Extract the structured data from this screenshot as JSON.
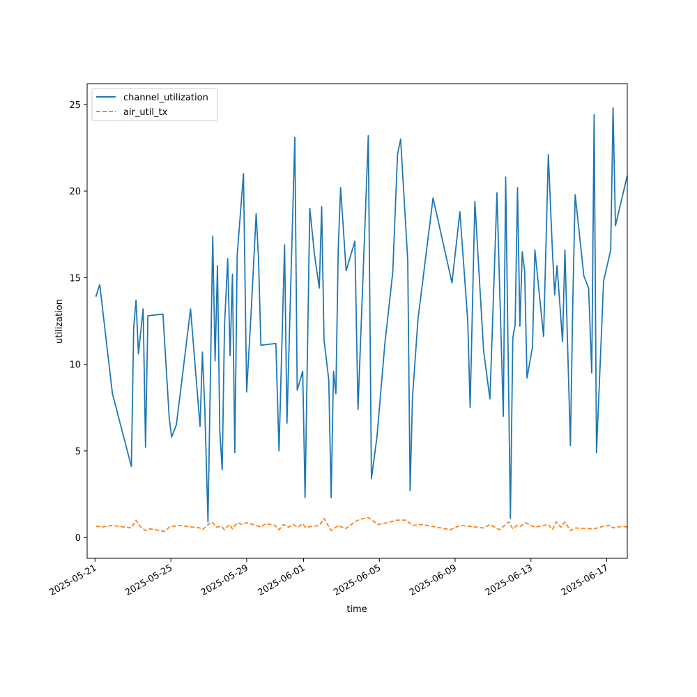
{
  "chart_data": {
    "type": "line",
    "xlabel": "time",
    "ylabel": "utilization",
    "x_axis_type": "date",
    "xlim": [
      "2025-05-20T14:00",
      "2025-06-18T02:00"
    ],
    "ylim": [
      -1.2,
      26.2
    ],
    "x_ticks": [
      "2025-05-21",
      "2025-05-25",
      "2025-05-29",
      "2025-06-01",
      "2025-06-05",
      "2025-06-09",
      "2025-06-13",
      "2025-06-17"
    ],
    "y_ticks": [
      0,
      5,
      10,
      15,
      20,
      25
    ],
    "grid": false,
    "legend": "upper left",
    "series": [
      {
        "name": "channel_utilization",
        "color": "#1f77b4",
        "style": "solid",
        "points": [
          [
            "2025-05-21T01:00",
            13.9
          ],
          [
            "2025-05-21T06:00",
            14.6
          ],
          [
            "2025-05-21T22:00",
            8.3
          ],
          [
            "2025-05-22T22:00",
            4.1
          ],
          [
            "2025-05-23T01:00",
            12.1
          ],
          [
            "2025-05-23T04:00",
            13.7
          ],
          [
            "2025-05-23T07:00",
            10.6
          ],
          [
            "2025-05-23T13:00",
            13.2
          ],
          [
            "2025-05-23T16:00",
            5.2
          ],
          [
            "2025-05-23T19:00",
            12.8
          ],
          [
            "2025-05-24T14:00",
            12.9
          ],
          [
            "2025-05-24T22:00",
            6.9
          ],
          [
            "2025-05-25T01:00",
            5.8
          ],
          [
            "2025-05-25T07:00",
            6.5
          ],
          [
            "2025-05-25T13:00",
            8.7
          ],
          [
            "2025-05-26T01:00",
            13.2
          ],
          [
            "2025-05-26T13:00",
            6.4
          ],
          [
            "2025-05-26T16:00",
            10.7
          ],
          [
            "2025-05-26T19:00",
            7.5
          ],
          [
            "2025-05-26T23:00",
            0.9
          ],
          [
            "2025-05-27T05:00",
            17.4
          ],
          [
            "2025-05-27T08:00",
            10.2
          ],
          [
            "2025-05-27T11:00",
            15.7
          ],
          [
            "2025-05-27T14:00",
            6.1
          ],
          [
            "2025-05-27T17:00",
            3.9
          ],
          [
            "2025-05-27T20:00",
            12.2
          ],
          [
            "2025-05-28T00:00",
            16.1
          ],
          [
            "2025-05-28T03:00",
            10.5
          ],
          [
            "2025-05-28T06:00",
            15.2
          ],
          [
            "2025-05-28T09:00",
            4.9
          ],
          [
            "2025-05-28T12:00",
            16.3
          ],
          [
            "2025-05-28T20:00",
            21.0
          ],
          [
            "2025-05-29T00:00",
            8.4
          ],
          [
            "2025-05-29T06:00",
            13.3
          ],
          [
            "2025-05-29T12:00",
            18.7
          ],
          [
            "2025-05-29T15:00",
            16.1
          ],
          [
            "2025-05-29T18:00",
            11.1
          ],
          [
            "2025-05-30T13:00",
            11.2
          ],
          [
            "2025-05-30T17:00",
            5.0
          ],
          [
            "2025-05-31T00:00",
            16.9
          ],
          [
            "2025-05-31T03:00",
            6.6
          ],
          [
            "2025-05-31T13:00",
            23.1
          ],
          [
            "2025-05-31T16:00",
            8.5
          ],
          [
            "2025-05-31T23:00",
            9.6
          ],
          [
            "2025-06-01T02:00",
            2.3
          ],
          [
            "2025-06-01T08:00",
            19.0
          ],
          [
            "2025-06-01T14:00",
            16.3
          ],
          [
            "2025-06-01T20:00",
            14.4
          ],
          [
            "2025-06-01T23:00",
            19.1
          ],
          [
            "2025-06-02T02:00",
            11.4
          ],
          [
            "2025-06-02T08:00",
            9.1
          ],
          [
            "2025-06-02T11:00",
            2.3
          ],
          [
            "2025-06-02T14:00",
            9.6
          ],
          [
            "2025-06-02T17:00",
            8.3
          ],
          [
            "2025-06-02T20:00",
            16.7
          ],
          [
            "2025-06-02T23:00",
            20.2
          ],
          [
            "2025-06-03T06:00",
            15.4
          ],
          [
            "2025-06-03T17:00",
            17.1
          ],
          [
            "2025-06-03T21:00",
            7.4
          ],
          [
            "2025-06-04T07:00",
            19.5
          ],
          [
            "2025-06-04T10:00",
            23.2
          ],
          [
            "2025-06-04T14:00",
            3.4
          ],
          [
            "2025-06-04T21:00",
            5.8
          ],
          [
            "2025-06-05T07:00",
            11.2
          ],
          [
            "2025-06-05T17:00",
            15.3
          ],
          [
            "2025-06-05T23:00",
            22.1
          ],
          [
            "2025-06-06T03:00",
            23.0
          ],
          [
            "2025-06-06T12:00",
            16.0
          ],
          [
            "2025-06-06T15:00",
            2.7
          ],
          [
            "2025-06-06T18:00",
            8.1
          ],
          [
            "2025-06-07T01:00",
            12.6
          ],
          [
            "2025-06-07T20:00",
            19.6
          ],
          [
            "2025-06-08T20:00",
            14.7
          ],
          [
            "2025-06-09T06:00",
            18.8
          ],
          [
            "2025-06-09T16:00",
            12.5
          ],
          [
            "2025-06-09T19:00",
            7.5
          ],
          [
            "2025-06-10T01:00",
            19.4
          ],
          [
            "2025-06-10T12:00",
            10.8
          ],
          [
            "2025-06-10T20:00",
            8.0
          ],
          [
            "2025-06-11T02:00",
            15.8
          ],
          [
            "2025-06-11T05:00",
            19.9
          ],
          [
            "2025-06-11T13:00",
            7.0
          ],
          [
            "2025-06-11T16:00",
            20.8
          ],
          [
            "2025-06-11T22:00",
            1.1
          ],
          [
            "2025-06-12T01:00",
            11.5
          ],
          [
            "2025-06-12T04:00",
            12.3
          ],
          [
            "2025-06-12T07:00",
            20.2
          ],
          [
            "2025-06-12T10:00",
            12.2
          ],
          [
            "2025-06-12T13:00",
            16.5
          ],
          [
            "2025-06-12T16:00",
            15.4
          ],
          [
            "2025-06-12T19:00",
            9.2
          ],
          [
            "2025-06-13T02:00",
            11.0
          ],
          [
            "2025-06-13T05:00",
            16.6
          ],
          [
            "2025-06-13T16:00",
            11.6
          ],
          [
            "2025-06-13T22:00",
            22.1
          ],
          [
            "2025-06-14T03:00",
            16.7
          ],
          [
            "2025-06-14T06:00",
            14.0
          ],
          [
            "2025-06-14T09:00",
            15.7
          ],
          [
            "2025-06-14T16:00",
            11.3
          ],
          [
            "2025-06-14T19:00",
            16.6
          ],
          [
            "2025-06-15T02:00",
            5.3
          ],
          [
            "2025-06-15T05:00",
            13.6
          ],
          [
            "2025-06-15T08:00",
            19.8
          ],
          [
            "2025-06-15T19:00",
            15.1
          ],
          [
            "2025-06-16T01:00",
            14.4
          ],
          [
            "2025-06-16T05:00",
            9.5
          ],
          [
            "2025-06-16T08:00",
            24.4
          ],
          [
            "2025-06-16T11:00",
            4.9
          ],
          [
            "2025-06-16T20:00",
            14.8
          ],
          [
            "2025-06-17T05:00",
            16.6
          ],
          [
            "2025-06-17T08:00",
            24.8
          ],
          [
            "2025-06-17T11:00",
            18.0
          ],
          [
            "2025-06-18T02:00",
            20.9
          ]
        ]
      },
      {
        "name": "air_util_tx",
        "color": "#ff7f0e",
        "style": "dashed",
        "points": [
          [
            "2025-05-21T01:00",
            0.65
          ],
          [
            "2025-05-21T10:00",
            0.62
          ],
          [
            "2025-05-21T22:00",
            0.7
          ],
          [
            "2025-05-22T22:00",
            0.55
          ],
          [
            "2025-05-23T04:00",
            1.0
          ],
          [
            "2025-05-23T10:00",
            0.6
          ],
          [
            "2025-05-23T16:00",
            0.4
          ],
          [
            "2025-05-23T22:00",
            0.5
          ],
          [
            "2025-05-24T10:00",
            0.4
          ],
          [
            "2025-05-24T16:00",
            0.35
          ],
          [
            "2025-05-24T22:00",
            0.6
          ],
          [
            "2025-05-25T10:00",
            0.7
          ],
          [
            "2025-05-26T04:00",
            0.6
          ],
          [
            "2025-05-26T13:00",
            0.55
          ],
          [
            "2025-05-26T16:00",
            0.45
          ],
          [
            "2025-05-26T22:00",
            0.7
          ],
          [
            "2025-05-27T04:00",
            0.9
          ],
          [
            "2025-05-27T10:00",
            0.6
          ],
          [
            "2025-05-27T16:00",
            0.65
          ],
          [
            "2025-05-27T20:00",
            0.45
          ],
          [
            "2025-05-28T02:00",
            0.75
          ],
          [
            "2025-05-28T06:00",
            0.5
          ],
          [
            "2025-05-28T12:00",
            0.85
          ],
          [
            "2025-05-28T18:00",
            0.75
          ],
          [
            "2025-05-29T00:00",
            0.85
          ],
          [
            "2025-05-29T12:00",
            0.7
          ],
          [
            "2025-05-29T18:00",
            0.6
          ],
          [
            "2025-05-30T00:00",
            0.8
          ],
          [
            "2025-05-30T12:00",
            0.7
          ],
          [
            "2025-05-30T17:00",
            0.45
          ],
          [
            "2025-05-30T23:00",
            0.75
          ],
          [
            "2025-05-31T05:00",
            0.6
          ],
          [
            "2025-05-31T11:00",
            0.75
          ],
          [
            "2025-05-31T17:00",
            0.6
          ],
          [
            "2025-05-31T23:00",
            0.8
          ],
          [
            "2025-06-01T02:00",
            0.6
          ],
          [
            "2025-06-01T14:00",
            0.65
          ],
          [
            "2025-06-01T20:00",
            0.7
          ],
          [
            "2025-06-02T02:00",
            1.1
          ],
          [
            "2025-06-02T11:00",
            0.4
          ],
          [
            "2025-06-02T20:00",
            0.7
          ],
          [
            "2025-06-03T05:00",
            0.5
          ],
          [
            "2025-06-03T17:00",
            0.9
          ],
          [
            "2025-06-03T23:00",
            1.05
          ],
          [
            "2025-06-04T10:00",
            1.15
          ],
          [
            "2025-06-04T22:00",
            0.75
          ],
          [
            "2025-06-05T10:00",
            0.85
          ],
          [
            "2025-06-05T22:00",
            1.0
          ],
          [
            "2025-06-06T10:00",
            1.0
          ],
          [
            "2025-06-06T18:00",
            0.7
          ],
          [
            "2025-06-07T06:00",
            0.75
          ],
          [
            "2025-06-08T18:00",
            0.45
          ],
          [
            "2025-06-09T06:00",
            0.7
          ],
          [
            "2025-06-09T18:00",
            0.65
          ],
          [
            "2025-06-10T12:00",
            0.55
          ],
          [
            "2025-06-10T20:00",
            0.75
          ],
          [
            "2025-06-11T08:00",
            0.45
          ],
          [
            "2025-06-11T20:00",
            0.9
          ],
          [
            "2025-06-12T01:00",
            0.5
          ],
          [
            "2025-06-12T06:00",
            0.7
          ],
          [
            "2025-06-12T11:00",
            0.65
          ],
          [
            "2025-06-12T17:00",
            0.85
          ],
          [
            "2025-06-13T05:00",
            0.6
          ],
          [
            "2025-06-13T17:00",
            0.7
          ],
          [
            "2025-06-13T22:00",
            0.75
          ],
          [
            "2025-06-14T03:00",
            0.45
          ],
          [
            "2025-06-14T08:00",
            0.9
          ],
          [
            "2025-06-14T14:00",
            0.6
          ],
          [
            "2025-06-14T19:00",
            0.9
          ],
          [
            "2025-06-15T02:00",
            0.4
          ],
          [
            "2025-06-15T08:00",
            0.55
          ],
          [
            "2025-06-16T08:00",
            0.5
          ],
          [
            "2025-06-16T20:00",
            0.65
          ],
          [
            "2025-06-17T05:00",
            0.7
          ],
          [
            "2025-06-17T08:00",
            0.55
          ],
          [
            "2025-06-17T20:00",
            0.65
          ],
          [
            "2025-06-18T02:00",
            0.6
          ]
        ]
      }
    ]
  }
}
